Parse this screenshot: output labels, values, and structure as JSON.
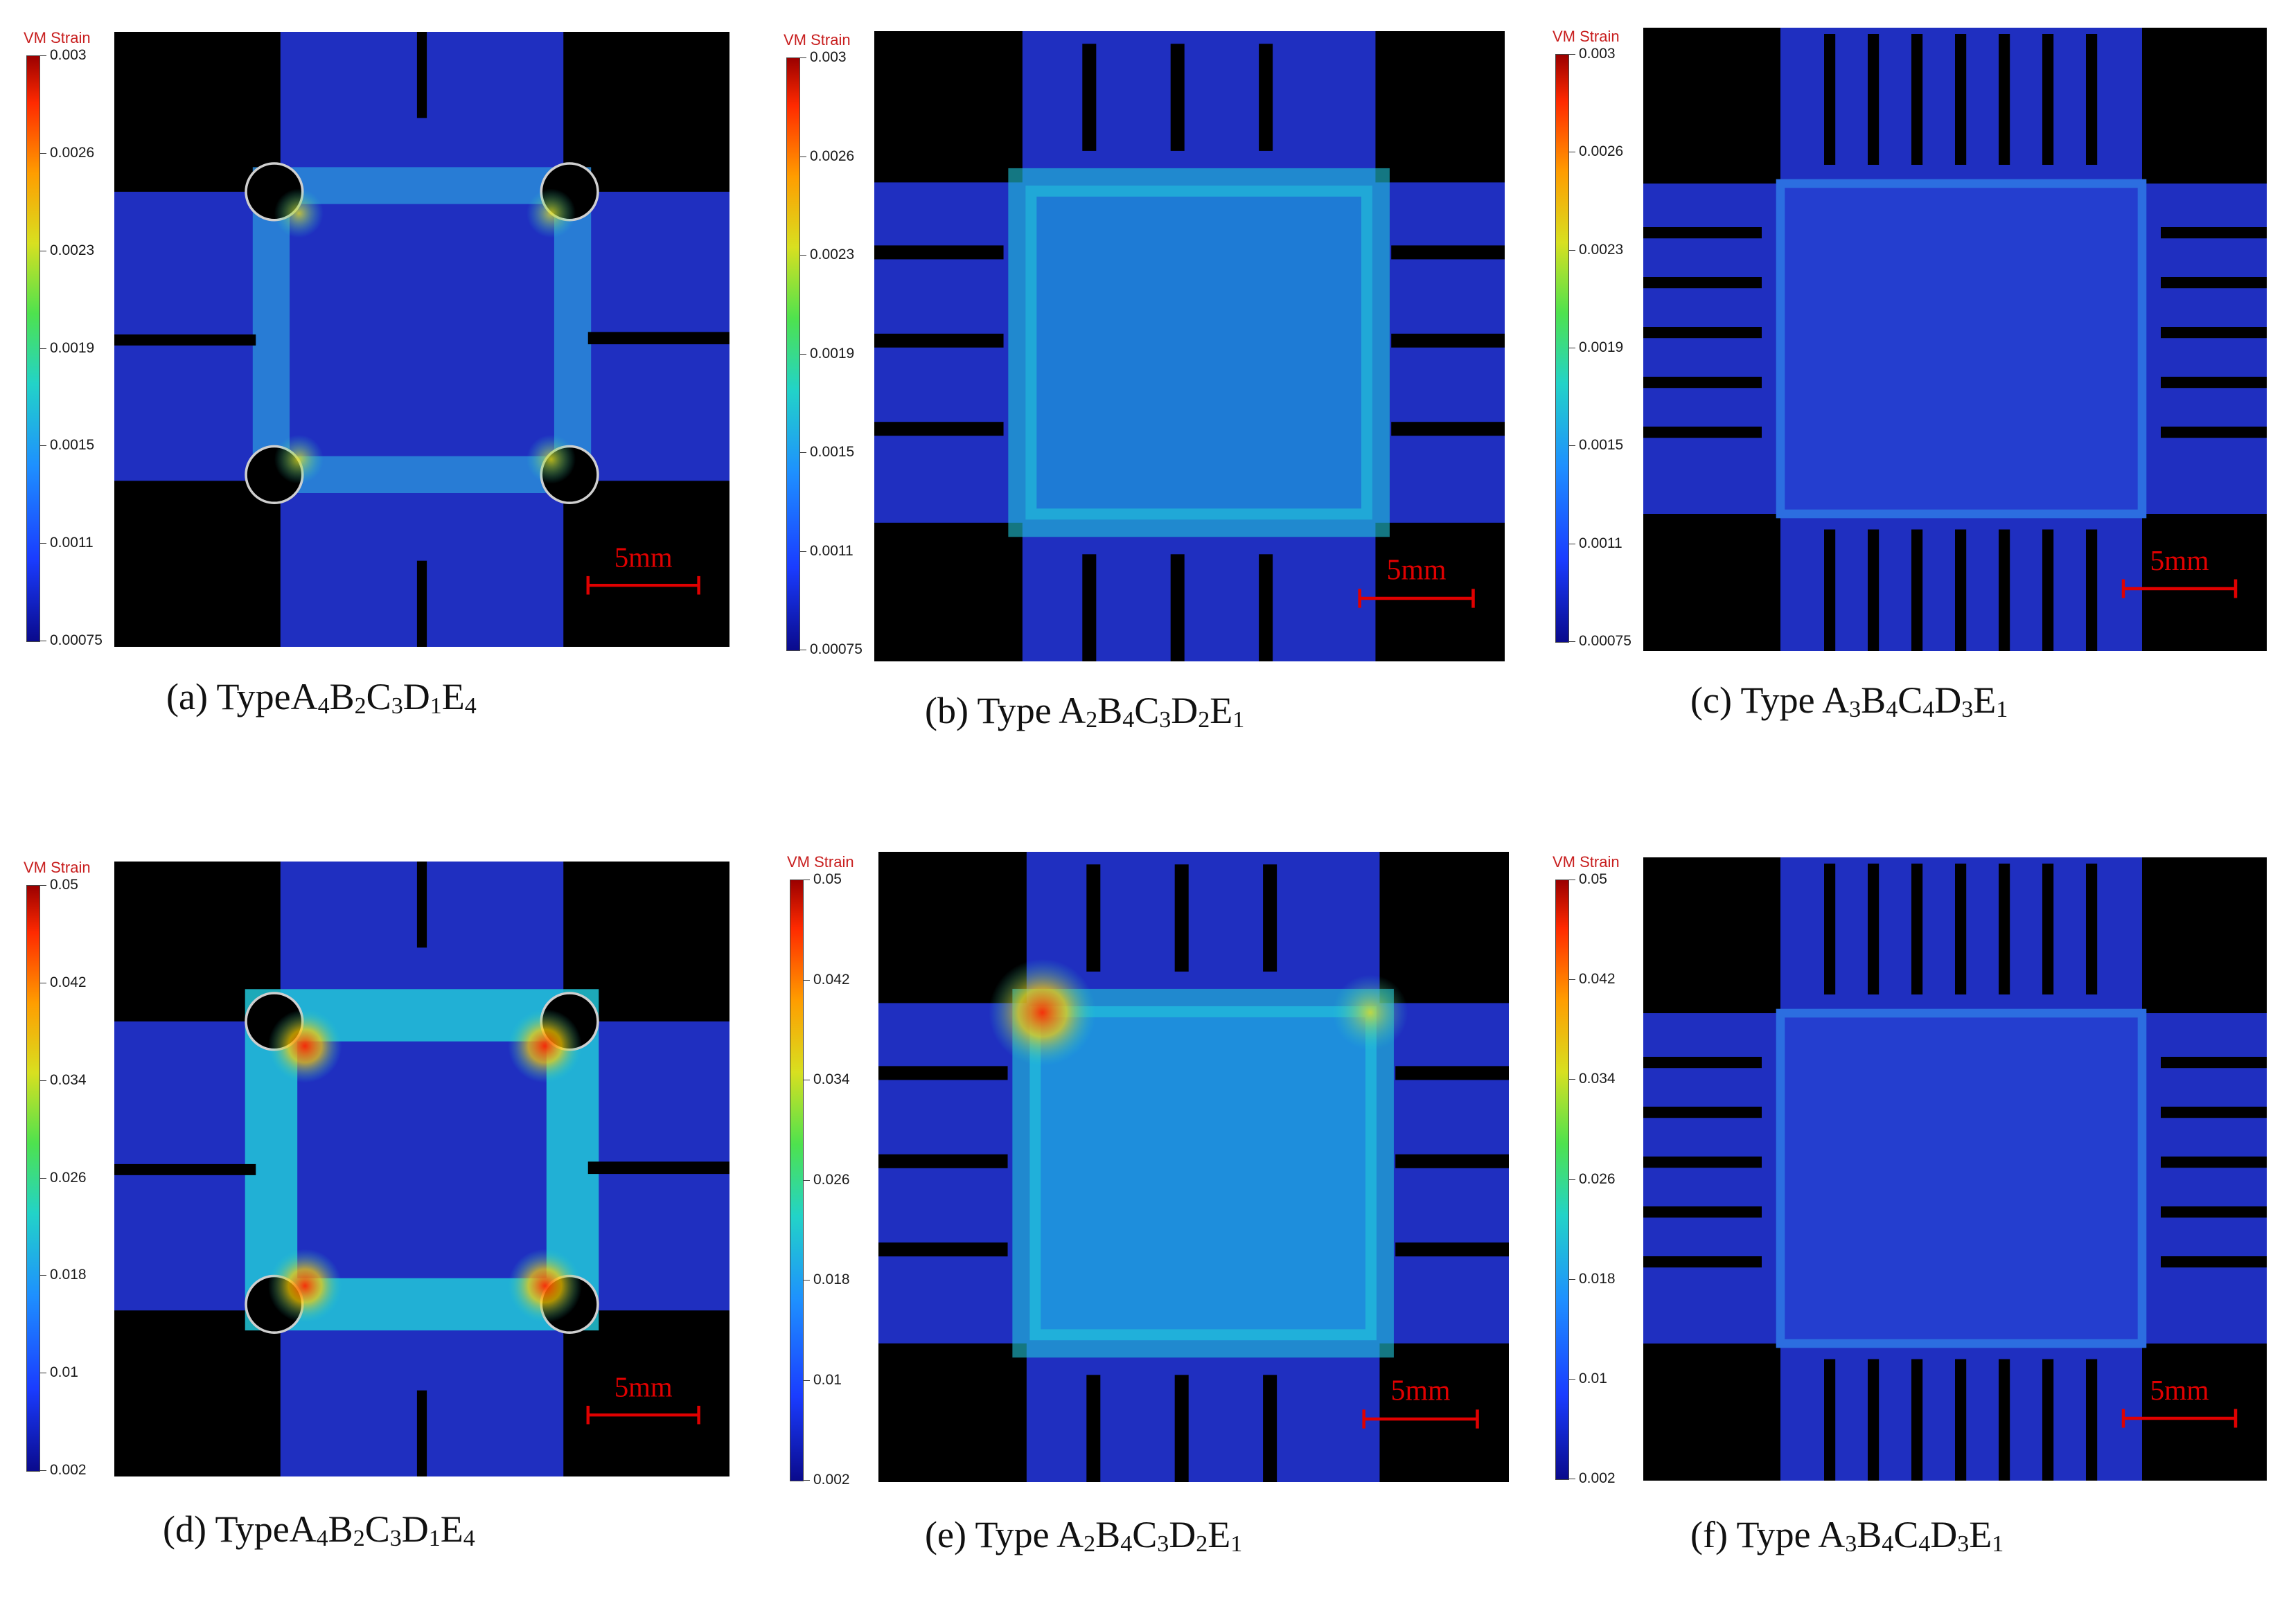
{
  "colorbar_title": "VM Strain",
  "colorbar_ticks_top": [
    "0.003",
    "0.0026",
    "0.0023",
    "0.0019",
    "0.0015",
    "0.0011",
    "0.00075"
  ],
  "colorbar_ticks_bottom": [
    "0.05",
    "0.042",
    "0.034",
    "0.026",
    "0.018",
    "0.01",
    "0.002"
  ],
  "scale_bar": "5mm",
  "captions": {
    "a": {
      "prefix": "(a) Type",
      "parts": [
        [
          "A",
          "4"
        ],
        [
          "B",
          "2"
        ],
        [
          "C",
          "3"
        ],
        [
          "D",
          "1"
        ],
        [
          "E",
          "4"
        ]
      ]
    },
    "b": {
      "prefix": "(b) Type ",
      "parts": [
        [
          "A",
          "2"
        ],
        [
          "B",
          "4"
        ],
        [
          "C",
          "3"
        ],
        [
          "D",
          "2"
        ],
        [
          "E",
          "1"
        ]
      ]
    },
    "c": {
      "prefix": "(c) Type ",
      "parts": [
        [
          "A",
          "3"
        ],
        [
          "B",
          "4"
        ],
        [
          "C",
          "4"
        ],
        [
          "D",
          "3"
        ],
        [
          "E",
          "1"
        ]
      ]
    },
    "d": {
      "prefix": "(d) Type",
      "parts": [
        [
          "A",
          "4"
        ],
        [
          "B",
          "2"
        ],
        [
          "C",
          "3"
        ],
        [
          "D",
          "1"
        ],
        [
          "E",
          "4"
        ]
      ]
    },
    "e": {
      "prefix": "(e) Type ",
      "parts": [
        [
          "A",
          "2"
        ],
        [
          "B",
          "4"
        ],
        [
          "C",
          "3"
        ],
        [
          "D",
          "2"
        ],
        [
          "E",
          "1"
        ]
      ]
    },
    "f": {
      "prefix": "(f) Type ",
      "parts": [
        [
          "A",
          "3"
        ],
        [
          "B",
          "4"
        ],
        [
          "C",
          "4"
        ],
        [
          "D",
          "3"
        ],
        [
          "E",
          "1"
        ]
      ]
    }
  },
  "colors": {
    "background_black": "#000000",
    "strain_low": "#1f2fc0",
    "strain_mid": "#22c7d8",
    "strain_high": "#ff2a00",
    "scale_bar_red": "#e00000",
    "colorbar_title_red": "#c81e1e"
  }
}
